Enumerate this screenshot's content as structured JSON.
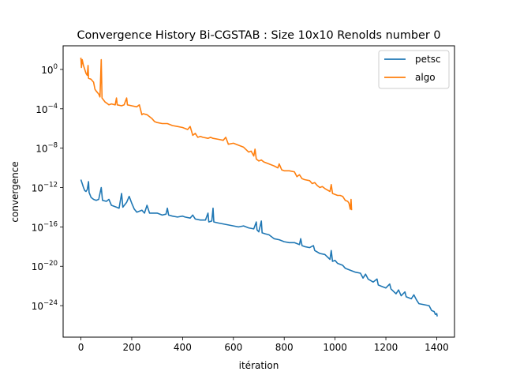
{
  "chart_data": {
    "type": "line",
    "title": "Convergence History Bi-CGSTAB : Size 10x10 Renolds number 0",
    "xlabel": "itération",
    "ylabel": "convergence",
    "xlim": [
      -70,
      1470
    ],
    "ylim_exponent": [
      -27.2,
      2.4
    ],
    "yscale": "log",
    "grid": false,
    "legend_position": "top-right",
    "x_ticks": [
      0,
      200,
      400,
      600,
      800,
      1000,
      1200,
      1400
    ],
    "x_tick_labels": [
      "0",
      "200",
      "400",
      "600",
      "800",
      "1000",
      "1200",
      "1400"
    ],
    "y_tick_exponents": [
      0,
      -4,
      -8,
      -12,
      -16,
      -20,
      -24
    ],
    "y_tick_labels": [
      {
        "base": "10",
        "exp": "0"
      },
      {
        "base": "10",
        "exp": "−4"
      },
      {
        "base": "10",
        "exp": "−8"
      },
      {
        "base": "10",
        "exp": "−12"
      },
      {
        "base": "10",
        "exp": "−16"
      },
      {
        "base": "10",
        "exp": "−20"
      },
      {
        "base": "10",
        "exp": "−24"
      }
    ],
    "series": [
      {
        "name": "petsc",
        "color": "#1f77b4",
        "points_log10": [
          [
            0,
            -11.2
          ],
          [
            5,
            -11.6
          ],
          [
            10,
            -12.0
          ],
          [
            15,
            -12.3
          ],
          [
            20,
            -12.4
          ],
          [
            25,
            -12.2
          ],
          [
            30,
            -11.4
          ],
          [
            32,
            -12.5
          ],
          [
            40,
            -13.0
          ],
          [
            50,
            -13.2
          ],
          [
            60,
            -13.3
          ],
          [
            70,
            -13.2
          ],
          [
            80,
            -12.0
          ],
          [
            85,
            -13.3
          ],
          [
            100,
            -13.4
          ],
          [
            110,
            -13.2
          ],
          [
            120,
            -13.8
          ],
          [
            140,
            -14.0
          ],
          [
            150,
            -14.1
          ],
          [
            160,
            -12.6
          ],
          [
            165,
            -14.0
          ],
          [
            180,
            -13.5
          ],
          [
            190,
            -12.9
          ],
          [
            200,
            -13.6
          ],
          [
            210,
            -14.2
          ],
          [
            220,
            -14.5
          ],
          [
            240,
            -14.3
          ],
          [
            250,
            -14.6
          ],
          [
            260,
            -13.8
          ],
          [
            270,
            -14.6
          ],
          [
            300,
            -14.6
          ],
          [
            320,
            -14.8
          ],
          [
            335,
            -14.7
          ],
          [
            340,
            -14.1
          ],
          [
            345,
            -14.8
          ],
          [
            360,
            -14.9
          ],
          [
            380,
            -15.0
          ],
          [
            400,
            -14.9
          ],
          [
            410,
            -15.0
          ],
          [
            430,
            -15.1
          ],
          [
            440,
            -14.8
          ],
          [
            450,
            -15.2
          ],
          [
            470,
            -15.3
          ],
          [
            490,
            -15.3
          ],
          [
            500,
            -14.6
          ],
          [
            503,
            -15.5
          ],
          [
            515,
            -15.4
          ],
          [
            520,
            -14.1
          ],
          [
            523,
            -15.5
          ],
          [
            540,
            -15.6
          ],
          [
            560,
            -15.7
          ],
          [
            580,
            -15.8
          ],
          [
            600,
            -15.9
          ],
          [
            620,
            -16.0
          ],
          [
            640,
            -15.9
          ],
          [
            660,
            -16.1
          ],
          [
            680,
            -16.2
          ],
          [
            690,
            -15.5
          ],
          [
            693,
            -16.3
          ],
          [
            700,
            -16.5
          ],
          [
            710,
            -15.4
          ],
          [
            713,
            -16.6
          ],
          [
            725,
            -16.7
          ],
          [
            740,
            -16.8
          ],
          [
            760,
            -17.2
          ],
          [
            780,
            -17.3
          ],
          [
            800,
            -17.5
          ],
          [
            820,
            -17.6
          ],
          [
            840,
            -17.6
          ],
          [
            860,
            -17.8
          ],
          [
            865,
            -17.2
          ],
          [
            870,
            -17.9
          ],
          [
            880,
            -18.0
          ],
          [
            900,
            -18.1
          ],
          [
            915,
            -17.9
          ],
          [
            920,
            -18.4
          ],
          [
            940,
            -18.7
          ],
          [
            960,
            -18.8
          ],
          [
            980,
            -19.3
          ],
          [
            985,
            -18.4
          ],
          [
            990,
            -19.5
          ],
          [
            1000,
            -19.4
          ],
          [
            1010,
            -19.7
          ],
          [
            1030,
            -19.9
          ],
          [
            1040,
            -20.2
          ],
          [
            1060,
            -20.4
          ],
          [
            1080,
            -20.6
          ],
          [
            1100,
            -20.7
          ],
          [
            1110,
            -21.2
          ],
          [
            1120,
            -20.8
          ],
          [
            1130,
            -21.3
          ],
          [
            1150,
            -21.6
          ],
          [
            1165,
            -21.3
          ],
          [
            1170,
            -21.9
          ],
          [
            1180,
            -22.0
          ],
          [
            1200,
            -22.2
          ],
          [
            1215,
            -21.8
          ],
          [
            1220,
            -22.3
          ],
          [
            1240,
            -22.8
          ],
          [
            1250,
            -22.4
          ],
          [
            1260,
            -23.0
          ],
          [
            1275,
            -22.6
          ],
          [
            1280,
            -23.1
          ],
          [
            1300,
            -23.3
          ],
          [
            1310,
            -22.9
          ],
          [
            1320,
            -23.4
          ],
          [
            1330,
            -23.8
          ],
          [
            1350,
            -23.9
          ],
          [
            1370,
            -24.0
          ],
          [
            1380,
            -24.5
          ],
          [
            1390,
            -24.6
          ],
          [
            1395,
            -24.9
          ],
          [
            1400,
            -24.8
          ],
          [
            1402,
            -25.1
          ]
        ]
      },
      {
        "name": "algo",
        "color": "#ff7f0e",
        "points_log10": [
          [
            0,
            1.2
          ],
          [
            2,
            0.2
          ],
          [
            5,
            1.0
          ],
          [
            10,
            0.4
          ],
          [
            15,
            0.0
          ],
          [
            20,
            -0.4
          ],
          [
            25,
            -0.6
          ],
          [
            28,
            0.4
          ],
          [
            30,
            -0.9
          ],
          [
            40,
            -1.0
          ],
          [
            50,
            -1.3
          ],
          [
            55,
            -2.0
          ],
          [
            60,
            -2.2
          ],
          [
            70,
            -2.5
          ],
          [
            75,
            -2.8
          ],
          [
            80,
            1.0
          ],
          [
            83,
            -2.9
          ],
          [
            95,
            -3.3
          ],
          [
            100,
            -3.4
          ],
          [
            110,
            -3.6
          ],
          [
            120,
            -3.5
          ],
          [
            135,
            -3.6
          ],
          [
            140,
            -2.9
          ],
          [
            143,
            -3.6
          ],
          [
            160,
            -3.7
          ],
          [
            170,
            -3.6
          ],
          [
            180,
            -2.9
          ],
          [
            183,
            -3.6
          ],
          [
            200,
            -3.7
          ],
          [
            220,
            -3.8
          ],
          [
            230,
            -3.6
          ],
          [
            240,
            -4.6
          ],
          [
            245,
            -4.5
          ],
          [
            260,
            -4.6
          ],
          [
            280,
            -5.0
          ],
          [
            290,
            -5.3
          ],
          [
            300,
            -5.4
          ],
          [
            320,
            -5.5
          ],
          [
            340,
            -5.5
          ],
          [
            360,
            -5.7
          ],
          [
            380,
            -5.8
          ],
          [
            400,
            -5.9
          ],
          [
            410,
            -6.0
          ],
          [
            420,
            -6.1
          ],
          [
            430,
            -5.8
          ],
          [
            440,
            -6.7
          ],
          [
            450,
            -6.5
          ],
          [
            460,
            -6.9
          ],
          [
            470,
            -6.8
          ],
          [
            480,
            -6.9
          ],
          [
            500,
            -7.0
          ],
          [
            510,
            -6.9
          ],
          [
            520,
            -7.0
          ],
          [
            540,
            -7.1
          ],
          [
            560,
            -7.2
          ],
          [
            570,
            -6.9
          ],
          [
            580,
            -7.6
          ],
          [
            600,
            -7.5
          ],
          [
            620,
            -7.7
          ],
          [
            640,
            -7.9
          ],
          [
            660,
            -8.4
          ],
          [
            670,
            -8.3
          ],
          [
            680,
            -8.8
          ],
          [
            685,
            -8.1
          ],
          [
            690,
            -9.1
          ],
          [
            700,
            -9.3
          ],
          [
            710,
            -9.2
          ],
          [
            720,
            -9.4
          ],
          [
            740,
            -9.6
          ],
          [
            760,
            -9.8
          ],
          [
            775,
            -10.0
          ],
          [
            780,
            -9.6
          ],
          [
            790,
            -10.2
          ],
          [
            800,
            -10.3
          ],
          [
            820,
            -10.3
          ],
          [
            840,
            -10.4
          ],
          [
            850,
            -10.9
          ],
          [
            860,
            -10.7
          ],
          [
            870,
            -11.1
          ],
          [
            880,
            -11.2
          ],
          [
            900,
            -11.3
          ],
          [
            910,
            -11.6
          ],
          [
            920,
            -11.5
          ],
          [
            930,
            -11.8
          ],
          [
            940,
            -12.0
          ],
          [
            950,
            -11.9
          ],
          [
            960,
            -12.1
          ],
          [
            980,
            -12.4
          ],
          [
            985,
            -11.7
          ],
          [
            990,
            -12.6
          ],
          [
            1000,
            -12.7
          ],
          [
            1010,
            -12.8
          ],
          [
            1020,
            -12.8
          ],
          [
            1030,
            -12.9
          ],
          [
            1040,
            -13.3
          ],
          [
            1050,
            -13.4
          ],
          [
            1055,
            -13.6
          ],
          [
            1060,
            -14.2
          ],
          [
            1063,
            -13.2
          ],
          [
            1065,
            -14.3
          ]
        ]
      }
    ]
  }
}
